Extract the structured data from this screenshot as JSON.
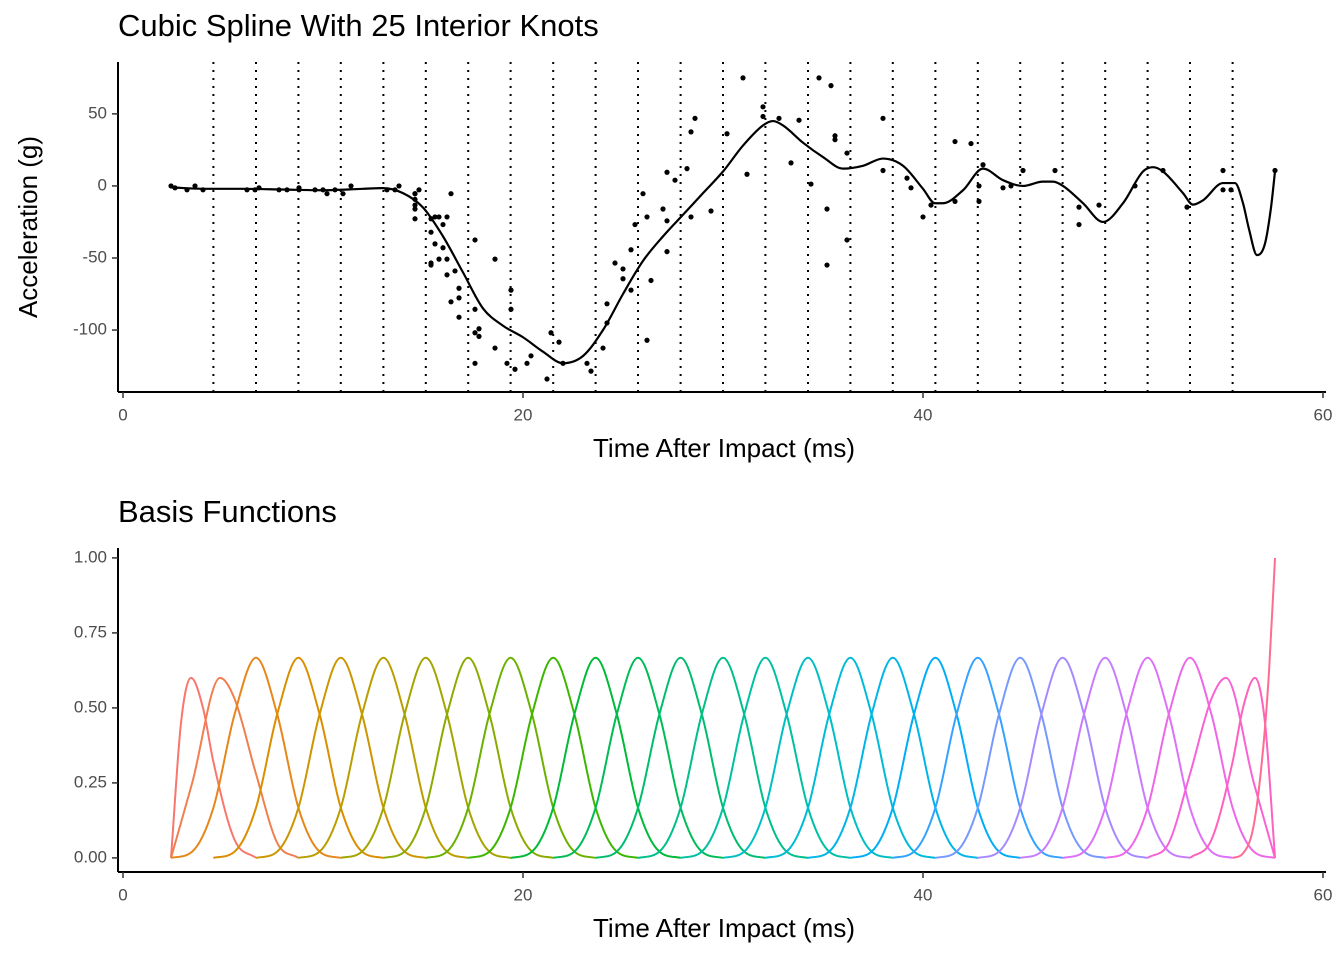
{
  "chart_data": [
    {
      "type": "scatter",
      "title": "Cubic Spline With 25 Interior Knots",
      "x_label": "Time After Impact (ms)",
      "y_label": "Acceleration (g)",
      "xlim": [
        -0.25,
        60.15
      ],
      "ylim": [
        -143,
        86
      ],
      "xticks": [
        0,
        20,
        40,
        60
      ],
      "yticks": [
        -100,
        -50,
        0,
        50
      ],
      "color": "#000000",
      "x": [
        2.4,
        2.6,
        3.2,
        3.6,
        4.0,
        6.2,
        6.6,
        6.8,
        7.8,
        8.2,
        8.8,
        8.8,
        9.6,
        10.0,
        10.2,
        10.6,
        11.0,
        11.4,
        13.2,
        13.6,
        13.8,
        14.6,
        14.6,
        14.6,
        14.6,
        14.6,
        14.6,
        14.8,
        15.4,
        15.4,
        15.4,
        15.4,
        15.6,
        15.6,
        15.8,
        15.8,
        16.0,
        16.0,
        16.2,
        16.2,
        16.2,
        16.4,
        16.4,
        16.6,
        16.8,
        16.8,
        16.8,
        17.6,
        17.6,
        17.6,
        17.6,
        17.8,
        17.8,
        18.6,
        18.6,
        19.2,
        19.4,
        19.4,
        19.6,
        20.2,
        20.4,
        21.2,
        21.4,
        21.8,
        22.0,
        23.2,
        23.4,
        24.0,
        24.2,
        24.2,
        24.6,
        25.0,
        25.0,
        25.4,
        25.4,
        25.6,
        26.0,
        26.2,
        26.2,
        26.4,
        27.0,
        27.2,
        27.2,
        27.2,
        27.6,
        28.2,
        28.4,
        28.4,
        28.6,
        29.4,
        30.2,
        31.0,
        31.2,
        32.0,
        32.0,
        32.8,
        33.4,
        33.8,
        34.4,
        34.8,
        35.2,
        35.2,
        35.4,
        35.6,
        35.6,
        36.2,
        36.2,
        38.0,
        38.0,
        39.2,
        39.4,
        40.0,
        40.4,
        41.6,
        41.6,
        42.4,
        42.8,
        42.8,
        43.0,
        44.0,
        44.4,
        45.0,
        46.6,
        47.8,
        47.8,
        48.8,
        50.6,
        52.0,
        53.2,
        55.0,
        55.0,
        55.4,
        57.6
      ],
      "values": [
        0.0,
        -1.3,
        -2.7,
        0.0,
        -2.7,
        -2.7,
        -2.7,
        -1.3,
        -2.7,
        -2.7,
        -1.3,
        -2.7,
        -2.7,
        -2.7,
        -5.4,
        -2.7,
        -5.4,
        0.0,
        -2.7,
        -2.7,
        0.0,
        -13.3,
        -5.4,
        -5.4,
        -9.3,
        -16.0,
        -22.8,
        -2.7,
        -22.8,
        -32.1,
        -53.5,
        -54.9,
        -40.2,
        -21.5,
        -21.5,
        -50.8,
        -42.9,
        -26.8,
        -21.5,
        -50.8,
        -61.7,
        -5.4,
        -80.4,
        -59.0,
        -71.0,
        -91.1,
        -77.7,
        -37.5,
        -85.6,
        -123.1,
        -101.9,
        -99.1,
        -104.4,
        -112.5,
        -50.8,
        -123.1,
        -85.6,
        -72.3,
        -127.2,
        -123.1,
        -117.9,
        -134.0,
        -101.9,
        -108.4,
        -123.1,
        -123.1,
        -128.5,
        -112.5,
        -95.1,
        -81.8,
        -53.5,
        -64.4,
        -57.6,
        -72.3,
        -44.3,
        -26.8,
        -5.4,
        -107.1,
        -21.5,
        -65.6,
        -16.0,
        -45.6,
        -24.2,
        9.5,
        4.0,
        12.0,
        -21.5,
        37.5,
        46.9,
        -17.4,
        36.2,
        75.0,
        8.1,
        54.9,
        48.2,
        46.9,
        16.0,
        45.6,
        1.3,
        75.0,
        -16.0,
        -54.9,
        69.6,
        34.8,
        32.1,
        -37.5,
        22.8,
        46.9,
        10.7,
        5.4,
        -1.3,
        -21.5,
        -13.3,
        30.8,
        -10.7,
        29.4,
        0.0,
        -10.7,
        14.7,
        -1.3,
        0.0,
        10.7,
        10.7,
        -26.8,
        -14.7,
        -13.3,
        0.0,
        10.7,
        -14.7,
        -2.7,
        10.7,
        -2.7,
        10.7
      ],
      "fit": {
        "color": "#000000",
        "x": [
          2.4,
          4,
          6,
          8,
          10,
          12,
          13,
          14,
          15,
          16,
          17,
          18,
          19,
          20,
          21,
          22,
          23,
          24,
          25,
          26,
          27,
          28,
          29,
          30,
          31,
          32,
          32.5,
          33,
          34,
          35,
          36,
          37,
          38,
          39,
          40,
          40.6,
          41,
          42,
          43,
          44,
          45,
          46,
          46.5,
          47,
          48,
          49,
          50,
          51,
          51.5,
          52,
          53,
          53.5,
          54,
          55,
          55.6,
          56,
          56.3,
          56.7,
          57.1,
          57.4,
          57.6
        ],
        "values": [
          -1,
          -2,
          -2,
          -2.5,
          -3,
          -2,
          -1.5,
          -5,
          -15,
          -35,
          -60,
          -85,
          -97,
          -105,
          -115,
          -123,
          -118,
          -100,
          -75,
          -52,
          -35,
          -20,
          -5,
          10,
          28,
          42,
          45,
          42,
          30,
          20,
          12,
          14,
          19,
          14,
          -2,
          -12,
          -12,
          -3,
          12,
          4,
          0,
          3,
          3,
          0,
          -12,
          -25,
          -12,
          10,
          13,
          10,
          -5,
          -13,
          -10,
          2,
          2,
          -12,
          -30,
          -48,
          -40,
          -15,
          10
        ]
      },
      "knots": [
        4.52,
        6.65,
        8.77,
        10.89,
        13.02,
        15.14,
        17.26,
        19.38,
        21.51,
        23.63,
        25.75,
        27.88,
        30.0,
        32.12,
        34.25,
        36.37,
        38.49,
        40.62,
        42.74,
        44.86,
        46.98,
        49.11,
        51.23,
        53.35,
        55.48
      ]
    },
    {
      "type": "line",
      "title": "Basis Functions",
      "x_label": "Time After Impact (ms)",
      "xlim": [
        -0.25,
        60.15
      ],
      "ylim": [
        -0.047,
        1.033
      ],
      "xticks": [
        0,
        20,
        40,
        60
      ],
      "yticks": [
        {
          "value": 0,
          "label": "0.00"
        },
        {
          "value": 0.25,
          "label": "0.25"
        },
        {
          "value": 0.5,
          "label": "0.50"
        },
        {
          "value": 0.75,
          "label": "0.75"
        },
        {
          "value": 1,
          "label": "1.00"
        }
      ],
      "series": [
        {
          "color": "#F8766D",
          "x": [
            2.4,
            2.9,
            3.4,
            4.0,
            4.52,
            5.58,
            6.65
          ],
          "values": [
            0,
            0.45,
            0.6,
            0.5,
            0.32,
            0.06,
            0
          ]
        },
        {
          "color": "#F07F4F",
          "x": [
            2.4,
            3.46,
            4.85,
            5.58,
            6.65,
            7.71,
            8.77
          ],
          "values": [
            0,
            0.25,
            0.6,
            0.53,
            0.28,
            0.05,
            0
          ]
        },
        {
          "color": "#E7861B",
          "x": [
            2.4,
            3.46,
            4.52,
            5.58,
            6.65,
            7.71,
            8.77,
            9.83,
            10.89
          ],
          "values": [
            0,
            0.021,
            0.167,
            0.479,
            0.667,
            0.479,
            0.167,
            0.021,
            0
          ]
        },
        {
          "color": "#DB8E00",
          "x": [
            4.52,
            5.58,
            6.65,
            7.71,
            8.77,
            9.83,
            10.89,
            11.95,
            13.02
          ],
          "values": [
            0,
            0.021,
            0.167,
            0.479,
            0.667,
            0.479,
            0.167,
            0.021,
            0
          ]
        },
        {
          "color": "#CC9600",
          "x": [
            6.65,
            7.71,
            8.77,
            9.83,
            10.89,
            11.95,
            13.02,
            14.08,
            15.14
          ],
          "values": [
            0,
            0.021,
            0.167,
            0.479,
            0.667,
            0.479,
            0.167,
            0.021,
            0
          ]
        },
        {
          "color": "#BA9E00",
          "x": [
            8.77,
            9.83,
            10.89,
            11.95,
            13.02,
            14.08,
            15.14,
            16.2,
            17.26
          ],
          "values": [
            0,
            0.021,
            0.167,
            0.479,
            0.667,
            0.479,
            0.167,
            0.021,
            0
          ]
        },
        {
          "color": "#A3A500",
          "x": [
            10.89,
            11.95,
            13.02,
            14.08,
            15.14,
            16.2,
            17.26,
            18.32,
            19.38
          ],
          "values": [
            0,
            0.021,
            0.167,
            0.479,
            0.667,
            0.479,
            0.167,
            0.021,
            0
          ]
        },
        {
          "color": "#8AAB00",
          "x": [
            13.02,
            14.08,
            15.14,
            16.2,
            17.26,
            18.32,
            19.38,
            20.45,
            21.51
          ],
          "values": [
            0,
            0.021,
            0.167,
            0.479,
            0.667,
            0.479,
            0.167,
            0.021,
            0
          ]
        },
        {
          "color": "#6BB100",
          "x": [
            15.14,
            16.2,
            17.26,
            18.32,
            19.38,
            20.45,
            21.51,
            22.57,
            23.63
          ],
          "values": [
            0,
            0.021,
            0.167,
            0.479,
            0.667,
            0.479,
            0.167,
            0.021,
            0
          ]
        },
        {
          "color": "#3DB600",
          "x": [
            17.26,
            18.32,
            19.38,
            20.45,
            21.51,
            22.57,
            23.63,
            24.69,
            25.75
          ],
          "values": [
            0,
            0.021,
            0.167,
            0.479,
            0.667,
            0.479,
            0.167,
            0.021,
            0
          ]
        },
        {
          "color": "#00BA38",
          "x": [
            19.38,
            20.45,
            21.51,
            22.57,
            23.63,
            24.69,
            25.75,
            26.82,
            27.88
          ],
          "values": [
            0,
            0.021,
            0.167,
            0.479,
            0.667,
            0.479,
            0.167,
            0.021,
            0
          ]
        },
        {
          "color": "#00BC56",
          "x": [
            21.51,
            22.57,
            23.63,
            24.69,
            25.75,
            26.82,
            27.88,
            28.94,
            30.0
          ],
          "values": [
            0,
            0.021,
            0.167,
            0.479,
            0.667,
            0.479,
            0.167,
            0.021,
            0
          ]
        },
        {
          "color": "#00BD6E",
          "x": [
            23.63,
            24.69,
            25.75,
            26.82,
            27.88,
            28.94,
            30.0,
            31.06,
            32.12
          ],
          "values": [
            0,
            0.021,
            0.167,
            0.479,
            0.667,
            0.479,
            0.167,
            0.021,
            0
          ]
        },
        {
          "color": "#00BF8A",
          "x": [
            25.75,
            26.82,
            27.88,
            28.94,
            30.0,
            31.06,
            32.12,
            33.18,
            34.25
          ],
          "values": [
            0,
            0.021,
            0.167,
            0.479,
            0.667,
            0.479,
            0.167,
            0.021,
            0
          ]
        },
        {
          "color": "#00C0A4",
          "x": [
            27.88,
            28.94,
            30.0,
            31.06,
            32.12,
            33.18,
            34.25,
            35.31,
            36.37
          ],
          "values": [
            0,
            0.021,
            0.167,
            0.479,
            0.667,
            0.479,
            0.167,
            0.021,
            0
          ]
        },
        {
          "color": "#00BFC4",
          "x": [
            30.0,
            31.06,
            32.12,
            33.18,
            34.25,
            35.31,
            36.37,
            37.43,
            38.49
          ],
          "values": [
            0,
            0.021,
            0.167,
            0.479,
            0.667,
            0.479,
            0.167,
            0.021,
            0
          ]
        },
        {
          "color": "#00BBD8",
          "x": [
            32.12,
            33.18,
            34.25,
            35.31,
            36.37,
            37.43,
            38.49,
            39.55,
            40.62
          ],
          "values": [
            0,
            0.021,
            0.167,
            0.479,
            0.667,
            0.479,
            0.167,
            0.021,
            0
          ]
        },
        {
          "color": "#00B5E8",
          "x": [
            34.25,
            35.31,
            36.37,
            37.43,
            38.49,
            39.55,
            40.62,
            41.68,
            42.74
          ],
          "values": [
            0,
            0.021,
            0.167,
            0.479,
            0.667,
            0.479,
            0.167,
            0.021,
            0
          ]
        },
        {
          "color": "#00ADF6",
          "x": [
            36.37,
            37.43,
            38.49,
            39.55,
            40.62,
            41.68,
            42.74,
            43.8,
            44.86
          ],
          "values": [
            0,
            0.021,
            0.167,
            0.479,
            0.667,
            0.479,
            0.167,
            0.021,
            0
          ]
        },
        {
          "color": "#35A2FF",
          "x": [
            38.49,
            39.55,
            40.62,
            41.68,
            42.74,
            43.8,
            44.86,
            45.92,
            46.98
          ],
          "values": [
            0,
            0.021,
            0.167,
            0.479,
            0.667,
            0.479,
            0.167,
            0.021,
            0
          ]
        },
        {
          "color": "#7799FF",
          "x": [
            40.62,
            41.68,
            42.74,
            43.8,
            44.86,
            45.92,
            46.98,
            48.05,
            49.11
          ],
          "values": [
            0,
            0.021,
            0.167,
            0.479,
            0.667,
            0.479,
            0.167,
            0.021,
            0
          ]
        },
        {
          "color": "#A58AFF",
          "x": [
            42.74,
            43.8,
            44.86,
            45.92,
            46.98,
            48.05,
            49.11,
            50.17,
            51.23
          ],
          "values": [
            0,
            0.021,
            0.167,
            0.479,
            0.667,
            0.479,
            0.167,
            0.021,
            0
          ]
        },
        {
          "color": "#C77CFF",
          "x": [
            44.86,
            45.92,
            46.98,
            48.05,
            49.11,
            50.17,
            51.23,
            52.29,
            53.35
          ],
          "values": [
            0,
            0.021,
            0.167,
            0.479,
            0.667,
            0.479,
            0.167,
            0.021,
            0
          ]
        },
        {
          "color": "#DD71FA",
          "x": [
            46.98,
            48.05,
            49.11,
            50.17,
            51.23,
            52.29,
            53.35,
            54.42,
            55.48
          ],
          "values": [
            0,
            0.021,
            0.167,
            0.479,
            0.667,
            0.479,
            0.167,
            0.021,
            0
          ]
        },
        {
          "color": "#EE67E9",
          "x": [
            49.11,
            50.17,
            51.23,
            52.29,
            53.35,
            54.42,
            55.48,
            56.54,
            57.6
          ],
          "values": [
            0,
            0.021,
            0.167,
            0.479,
            0.667,
            0.479,
            0.167,
            0.021,
            0
          ]
        },
        {
          "color": "#F962D5",
          "x": [
            51.23,
            52.29,
            53.35,
            54.42,
            55.15,
            56.54,
            57.6
          ],
          "values": [
            0,
            0.05,
            0.28,
            0.53,
            0.6,
            0.25,
            0
          ]
        },
        {
          "color": "#FE61BE",
          "x": [
            53.35,
            54.42,
            55.48,
            56.0,
            56.6,
            57.1,
            57.6
          ],
          "values": [
            0,
            0.06,
            0.32,
            0.5,
            0.6,
            0.45,
            0
          ]
        },
        {
          "color": "#FF6C91",
          "x": [
            55.48,
            56.0,
            56.54,
            57.0,
            57.3,
            57.6
          ],
          "values": [
            0,
            0.015,
            0.11,
            0.36,
            0.62,
            1
          ]
        }
      ]
    }
  ]
}
